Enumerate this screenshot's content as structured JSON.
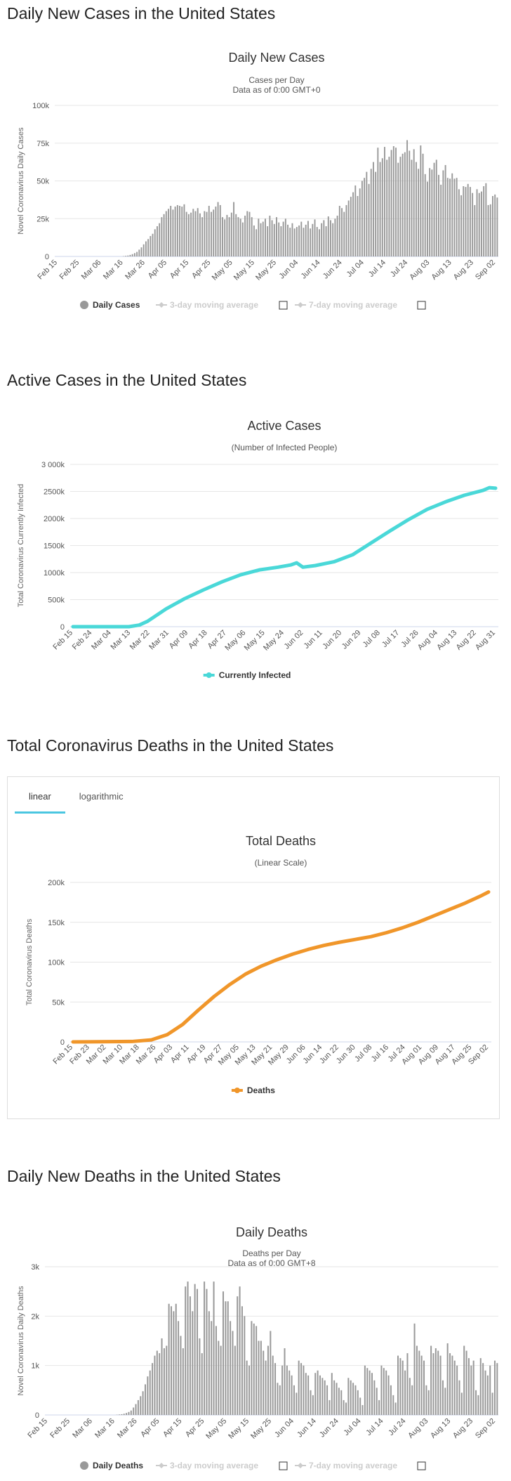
{
  "headings": {
    "daily_cases": "Daily New Cases in the United States",
    "active_cases": "Active Cases in the United States",
    "total_deaths": "Total Coronavirus Deaths in the United States",
    "daily_deaths": "Daily New Deaths in the United States"
  },
  "tabs": {
    "linear": "linear",
    "logarithmic": "logarithmic"
  },
  "colors": {
    "bar": "#999999",
    "active": "#4ad8d8",
    "deaths": "#f0962a",
    "grid": "#e6e6e6",
    "tab_accent": "#4ac6e0"
  },
  "chart_data": [
    {
      "id": "daily_cases",
      "type": "bar",
      "title": "Daily New Cases",
      "subtitle": "Cases per Day",
      "subtitle2": "Data as of 0:00 GMT+0",
      "xlabel": "",
      "ylabel": "Novel Coronavirus Daily Cases",
      "ylim": [
        0,
        100000
      ],
      "y_ticks": [
        "0",
        "25k",
        "50k",
        "75k",
        "100k"
      ],
      "x_ticks": [
        "Feb 15",
        "Feb 25",
        "Mar 06",
        "Mar 16",
        "Mar 26",
        "Apr 05",
        "Apr 15",
        "Apr 25",
        "May 05",
        "May 15",
        "May 25",
        "Jun 04",
        "Jun 14",
        "Jun 24",
        "Jul 04",
        "Jul 14",
        "Jul 24",
        "Aug 03",
        "Aug 13",
        "Aug 23",
        "Sep 02"
      ],
      "start_date": "Feb 15",
      "values": [
        0,
        0,
        0,
        0,
        0,
        0,
        0,
        0,
        0,
        0,
        0,
        0,
        0,
        0,
        0,
        0,
        0,
        0,
        0,
        0,
        0,
        0,
        0,
        0,
        0,
        0,
        0,
        0,
        0,
        0,
        200,
        400,
        600,
        1000,
        1500,
        2200,
        3000,
        4500,
        6000,
        8000,
        10000,
        11500,
        13500,
        15000,
        18000,
        20000,
        22000,
        26000,
        28000,
        30000,
        31500,
        33500,
        31000,
        33000,
        34000,
        33500,
        33000,
        34500,
        29500,
        28000,
        29000,
        31500,
        30000,
        32000,
        28500,
        26000,
        30000,
        29500,
        33500,
        29500,
        31000,
        33000,
        36000,
        34000,
        26000,
        24500,
        27500,
        26000,
        29000,
        36000,
        28000,
        26000,
        25000,
        22500,
        27000,
        30000,
        29500,
        26000,
        20500,
        18000,
        25000,
        22000,
        23000,
        25000,
        20000,
        27000,
        24000,
        21500,
        26000,
        22500,
        20000,
        23000,
        25000,
        21000,
        19000,
        22000,
        18500,
        19500,
        20500,
        23000,
        19000,
        21000,
        23500,
        18500,
        21500,
        24500,
        19500,
        18000,
        22000,
        24000,
        20000,
        26500,
        24000,
        22000,
        25000,
        27000,
        33500,
        32000,
        29500,
        34000,
        37000,
        39500,
        42500,
        47000,
        40000,
        45000,
        50000,
        52000,
        56000,
        48000,
        58000,
        62500,
        56000,
        72000,
        62500,
        65000,
        72500,
        64000,
        66000,
        70500,
        73000,
        72000,
        62000,
        66000,
        68000,
        69000,
        77000,
        70000,
        64000,
        71000,
        62500,
        58000,
        73500,
        68000,
        54500,
        49500,
        58500,
        57500,
        62000,
        64000,
        54000,
        47500,
        57000,
        60500,
        52000,
        51500,
        55000,
        51500,
        52000,
        44500,
        40500,
        46500,
        46000,
        48000,
        46000,
        42000,
        34000,
        44500,
        42000,
        43000,
        46500,
        48500,
        34000,
        34500,
        40000,
        41000,
        39000
      ]
    },
    {
      "id": "active_cases",
      "type": "line",
      "title": "Active Cases",
      "subtitle": "(Number of Infected People)",
      "xlabel": "",
      "ylabel": "Total Coronavirus Currently Infected",
      "ylim": [
        0,
        3000000
      ],
      "y_ticks": [
        "0",
        "500k",
        "1000k",
        "1500k",
        "2000k",
        "2500k",
        "3 000k"
      ],
      "x_ticks": [
        "Feb 15",
        "Feb 24",
        "Mar 04",
        "Mar 13",
        "Mar 22",
        "Mar 31",
        "Apr 09",
        "Apr 18",
        "Apr 27",
        "May 06",
        "May 15",
        "May 24",
        "Jun 02",
        "Jun 11",
        "Jun 20",
        "Jun 29",
        "Jul 08",
        "Jul 17",
        "Jul 26",
        "Aug 04",
        "Aug 13",
        "Aug 22",
        "Aug 31"
      ],
      "series": [
        {
          "name": "Currently Infected",
          "x": [
            0,
            27,
            32,
            36,
            45,
            54,
            63,
            72,
            81,
            90,
            99,
            105,
            108,
            111,
            117,
            126,
            135,
            144,
            153,
            162,
            171,
            180,
            189,
            198,
            201,
            204
          ],
          "values": [
            0,
            0,
            30000,
            100000,
            330000,
            520000,
            680000,
            830000,
            960000,
            1050000,
            1100000,
            1140000,
            1180000,
            1100000,
            1130000,
            1200000,
            1330000,
            1550000,
            1770000,
            1980000,
            2170000,
            2310000,
            2430000,
            2520000,
            2570000,
            2560000
          ]
        }
      ],
      "legend": "Currently Infected"
    },
    {
      "id": "total_deaths",
      "type": "line",
      "title": "Total Deaths",
      "subtitle": "(Linear Scale)",
      "xlabel": "",
      "ylabel": "Total Coronavirus Deaths",
      "ylim": [
        0,
        200000
      ],
      "y_ticks": [
        "0",
        "50k",
        "100k",
        "150k",
        "200k"
      ],
      "x_ticks": [
        "Feb 15",
        "Feb 23",
        "Mar 02",
        "Mar 10",
        "Mar 18",
        "Mar 26",
        "Apr 03",
        "Apr 11",
        "Apr 19",
        "Apr 27",
        "May 05",
        "May 13",
        "May 21",
        "May 29",
        "Jun 06",
        "Jun 14",
        "Jun 22",
        "Jun 30",
        "Jul 08",
        "Jul 16",
        "Jul 24",
        "Aug 01",
        "Aug 09",
        "Aug 17",
        "Aug 25",
        "Sep 02"
      ],
      "series": [
        {
          "name": "Deaths",
          "x": [
            0,
            30,
            40,
            48,
            56,
            64,
            72,
            80,
            88,
            96,
            104,
            112,
            120,
            128,
            136,
            144,
            152,
            160,
            168,
            176,
            184,
            192,
            200,
            208,
            212
          ],
          "values": [
            0,
            500,
            2500,
            9000,
            22000,
            40000,
            57000,
            72000,
            85000,
            95000,
            103000,
            110000,
            116000,
            121000,
            125000,
            128500,
            132000,
            137000,
            143000,
            150000,
            158000,
            166000,
            174000,
            183000,
            188000
          ]
        }
      ],
      "legend": "Deaths"
    },
    {
      "id": "daily_deaths",
      "type": "bar",
      "title": "Daily Deaths",
      "subtitle": "Deaths per Day",
      "subtitle2": "Data as of 0:00 GMT+8",
      "xlabel": "",
      "ylabel": "Novel Coronavirus Daily Deaths",
      "ylim": [
        0,
        3000
      ],
      "y_ticks": [
        "0",
        "1k",
        "2k",
        "3k"
      ],
      "x_ticks": [
        "Feb 15",
        "Feb 25",
        "Mar 06",
        "Mar 16",
        "Mar 26",
        "Apr 05",
        "Apr 15",
        "Apr 25",
        "May 05",
        "May 15",
        "May 25",
        "Jun 04",
        "Jun 14",
        "Jun 24",
        "Jul 04",
        "Jul 14",
        "Jul 24",
        "Aug 03",
        "Aug 13",
        "Aug 23",
        "Sep 02"
      ],
      "start_date": "Feb 15",
      "values": [
        0,
        0,
        0,
        0,
        0,
        0,
        0,
        0,
        0,
        0,
        0,
        0,
        0,
        0,
        0,
        0,
        0,
        0,
        0,
        0,
        0,
        0,
        0,
        0,
        0,
        0,
        0,
        0,
        0,
        0,
        5,
        10,
        15,
        25,
        40,
        60,
        90,
        150,
        220,
        300,
        380,
        480,
        620,
        780,
        900,
        1050,
        1200,
        1300,
        1250,
        1550,
        1350,
        1400,
        2250,
        2200,
        2100,
        2250,
        1900,
        1600,
        1350,
        2600,
        2700,
        2400,
        2100,
        2650,
        2550,
        1550,
        1250,
        2700,
        2550,
        2100,
        1900,
        2700,
        1800,
        1500,
        1400,
        2500,
        2300,
        2300,
        1900,
        1700,
        1400,
        2400,
        2600,
        2200,
        2000,
        1100,
        1000,
        1900,
        1850,
        1800,
        1500,
        1500,
        1300,
        1100,
        1400,
        1700,
        1200,
        1050,
        650,
        600,
        1000,
        1350,
        1000,
        900,
        800,
        600,
        450,
        1100,
        1050,
        1000,
        850,
        800,
        500,
        400,
        850,
        900,
        800,
        750,
        700,
        600,
        300,
        850,
        700,
        650,
        550,
        500,
        300,
        250,
        750,
        700,
        650,
        600,
        500,
        350,
        200,
        1000,
        950,
        900,
        850,
        700,
        550,
        300,
        1000,
        950,
        900,
        800,
        600,
        400,
        250,
        1200,
        1150,
        1100,
        900,
        1250,
        750,
        600,
        1850,
        1400,
        1300,
        1200,
        1100,
        600,
        500,
        1400,
        1250,
        1350,
        1300,
        1200,
        700,
        550,
        1450,
        1250,
        1200,
        1100,
        1000,
        700,
        450,
        1400,
        1300,
        1150,
        1000,
        1100,
        500,
        400,
        1150,
        1050,
        900,
        800,
        1000,
        450,
        1100,
        1050
      ]
    }
  ],
  "daily_cases_legend": {
    "main": "Daily Cases",
    "ma3": "3-day moving average",
    "ma7": "7-day moving average"
  },
  "daily_deaths_legend": {
    "main": "Daily Deaths",
    "ma3": "3-day moving average",
    "ma7": "7-day moving average"
  }
}
